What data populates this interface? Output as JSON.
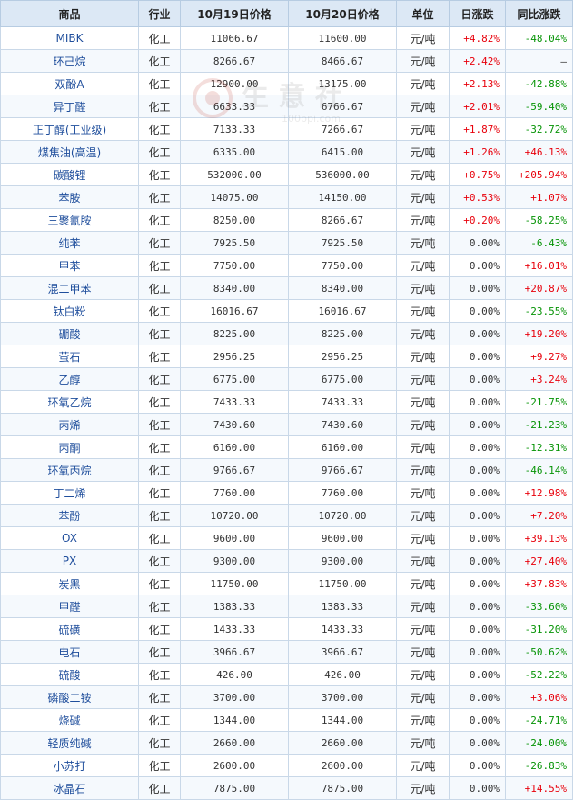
{
  "headers": [
    "商品",
    "行业",
    "10月19日价格",
    "10月20日价格",
    "单位",
    "日涨跌",
    "同比涨跌"
  ],
  "colors": {
    "up": "#e8000b",
    "down": "#069406",
    "header_bg": "#dce8f5",
    "link": "#1f4e9c"
  },
  "watermark": {
    "brand": "生 意 社",
    "site": "100ppi.com"
  },
  "rows": [
    {
      "name": "MIBK",
      "industry": "化工",
      "price_prev": "11066.67",
      "price_curr": "11600.00",
      "unit": "元/吨",
      "daily": "+4.82%",
      "yoy": "-48.04%"
    },
    {
      "name": "环己烷",
      "industry": "化工",
      "price_prev": "8266.67",
      "price_curr": "8466.67",
      "unit": "元/吨",
      "daily": "+2.42%",
      "yoy": "—"
    },
    {
      "name": "双酚A",
      "industry": "化工",
      "price_prev": "12900.00",
      "price_curr": "13175.00",
      "unit": "元/吨",
      "daily": "+2.13%",
      "yoy": "-42.88%"
    },
    {
      "name": "异丁醛",
      "industry": "化工",
      "price_prev": "6633.33",
      "price_curr": "6766.67",
      "unit": "元/吨",
      "daily": "+2.01%",
      "yoy": "-59.40%"
    },
    {
      "name": "正丁醇(工业级)",
      "industry": "化工",
      "price_prev": "7133.33",
      "price_curr": "7266.67",
      "unit": "元/吨",
      "daily": "+1.87%",
      "yoy": "-32.72%"
    },
    {
      "name": "煤焦油(高温)",
      "industry": "化工",
      "price_prev": "6335.00",
      "price_curr": "6415.00",
      "unit": "元/吨",
      "daily": "+1.26%",
      "yoy": "+46.13%"
    },
    {
      "name": "碳酸锂",
      "industry": "化工",
      "price_prev": "532000.00",
      "price_curr": "536000.00",
      "unit": "元/吨",
      "daily": "+0.75%",
      "yoy": "+205.94%"
    },
    {
      "name": "苯胺",
      "industry": "化工",
      "price_prev": "14075.00",
      "price_curr": "14150.00",
      "unit": "元/吨",
      "daily": "+0.53%",
      "yoy": "+1.07%"
    },
    {
      "name": "三聚氰胺",
      "industry": "化工",
      "price_prev": "8250.00",
      "price_curr": "8266.67",
      "unit": "元/吨",
      "daily": "+0.20%",
      "yoy": "-58.25%"
    },
    {
      "name": "纯苯",
      "industry": "化工",
      "price_prev": "7925.50",
      "price_curr": "7925.50",
      "unit": "元/吨",
      "daily": "0.00%",
      "yoy": "-6.43%"
    },
    {
      "name": "甲苯",
      "industry": "化工",
      "price_prev": "7750.00",
      "price_curr": "7750.00",
      "unit": "元/吨",
      "daily": "0.00%",
      "yoy": "+16.01%"
    },
    {
      "name": "混二甲苯",
      "industry": "化工",
      "price_prev": "8340.00",
      "price_curr": "8340.00",
      "unit": "元/吨",
      "daily": "0.00%",
      "yoy": "+20.87%"
    },
    {
      "name": "钛白粉",
      "industry": "化工",
      "price_prev": "16016.67",
      "price_curr": "16016.67",
      "unit": "元/吨",
      "daily": "0.00%",
      "yoy": "-23.55%"
    },
    {
      "name": "硼酸",
      "industry": "化工",
      "price_prev": "8225.00",
      "price_curr": "8225.00",
      "unit": "元/吨",
      "daily": "0.00%",
      "yoy": "+19.20%"
    },
    {
      "name": "萤石",
      "industry": "化工",
      "price_prev": "2956.25",
      "price_curr": "2956.25",
      "unit": "元/吨",
      "daily": "0.00%",
      "yoy": "+9.27%"
    },
    {
      "name": "乙醇",
      "industry": "化工",
      "price_prev": "6775.00",
      "price_curr": "6775.00",
      "unit": "元/吨",
      "daily": "0.00%",
      "yoy": "+3.24%"
    },
    {
      "name": "环氧乙烷",
      "industry": "化工",
      "price_prev": "7433.33",
      "price_curr": "7433.33",
      "unit": "元/吨",
      "daily": "0.00%",
      "yoy": "-21.75%"
    },
    {
      "name": "丙烯",
      "industry": "化工",
      "price_prev": "7430.60",
      "price_curr": "7430.60",
      "unit": "元/吨",
      "daily": "0.00%",
      "yoy": "-21.23%"
    },
    {
      "name": "丙酮",
      "industry": "化工",
      "price_prev": "6160.00",
      "price_curr": "6160.00",
      "unit": "元/吨",
      "daily": "0.00%",
      "yoy": "-12.31%"
    },
    {
      "name": "环氧丙烷",
      "industry": "化工",
      "price_prev": "9766.67",
      "price_curr": "9766.67",
      "unit": "元/吨",
      "daily": "0.00%",
      "yoy": "-46.14%"
    },
    {
      "name": "丁二烯",
      "industry": "化工",
      "price_prev": "7760.00",
      "price_curr": "7760.00",
      "unit": "元/吨",
      "daily": "0.00%",
      "yoy": "+12.98%"
    },
    {
      "name": "苯酚",
      "industry": "化工",
      "price_prev": "10720.00",
      "price_curr": "10720.00",
      "unit": "元/吨",
      "daily": "0.00%",
      "yoy": "+7.20%"
    },
    {
      "name": "OX",
      "industry": "化工",
      "price_prev": "9600.00",
      "price_curr": "9600.00",
      "unit": "元/吨",
      "daily": "0.00%",
      "yoy": "+39.13%"
    },
    {
      "name": "PX",
      "industry": "化工",
      "price_prev": "9300.00",
      "price_curr": "9300.00",
      "unit": "元/吨",
      "daily": "0.00%",
      "yoy": "+27.40%"
    },
    {
      "name": "炭黑",
      "industry": "化工",
      "price_prev": "11750.00",
      "price_curr": "11750.00",
      "unit": "元/吨",
      "daily": "0.00%",
      "yoy": "+37.83%"
    },
    {
      "name": "甲醛",
      "industry": "化工",
      "price_prev": "1383.33",
      "price_curr": "1383.33",
      "unit": "元/吨",
      "daily": "0.00%",
      "yoy": "-33.60%"
    },
    {
      "name": "硫磺",
      "industry": "化工",
      "price_prev": "1433.33",
      "price_curr": "1433.33",
      "unit": "元/吨",
      "daily": "0.00%",
      "yoy": "-31.20%"
    },
    {
      "name": "电石",
      "industry": "化工",
      "price_prev": "3966.67",
      "price_curr": "3966.67",
      "unit": "元/吨",
      "daily": "0.00%",
      "yoy": "-50.62%"
    },
    {
      "name": "硫酸",
      "industry": "化工",
      "price_prev": "426.00",
      "price_curr": "426.00",
      "unit": "元/吨",
      "daily": "0.00%",
      "yoy": "-52.22%"
    },
    {
      "name": "磷酸二铵",
      "industry": "化工",
      "price_prev": "3700.00",
      "price_curr": "3700.00",
      "unit": "元/吨",
      "daily": "0.00%",
      "yoy": "+3.06%"
    },
    {
      "name": "烧碱",
      "industry": "化工",
      "price_prev": "1344.00",
      "price_curr": "1344.00",
      "unit": "元/吨",
      "daily": "0.00%",
      "yoy": "-24.71%"
    },
    {
      "name": "轻质纯碱",
      "industry": "化工",
      "price_prev": "2660.00",
      "price_curr": "2660.00",
      "unit": "元/吨",
      "daily": "0.00%",
      "yoy": "-24.00%"
    },
    {
      "name": "小苏打",
      "industry": "化工",
      "price_prev": "2600.00",
      "price_curr": "2600.00",
      "unit": "元/吨",
      "daily": "0.00%",
      "yoy": "-26.83%"
    },
    {
      "name": "冰晶石",
      "industry": "化工",
      "price_prev": "7875.00",
      "price_curr": "7875.00",
      "unit": "元/吨",
      "daily": "0.00%",
      "yoy": "+14.55%"
    }
  ]
}
